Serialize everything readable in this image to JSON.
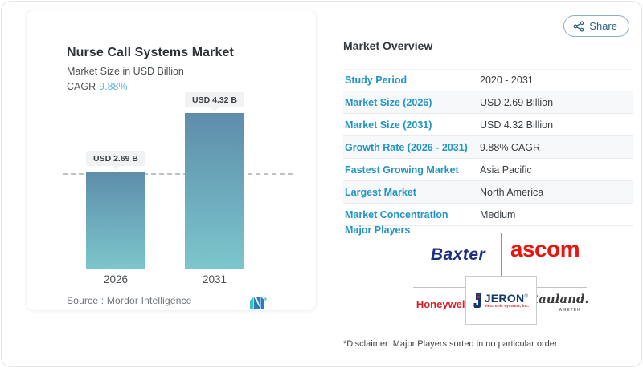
{
  "share": {
    "label": "Share"
  },
  "chart_card": {
    "title": "Nurse Call Systems Market",
    "subtitle": "Market Size in USD Billion",
    "cagr_label": "CAGR",
    "cagr_value": "9.88%",
    "source_label": "Source :  Mordor Intelligence"
  },
  "chart_data": {
    "type": "bar",
    "title": "Nurse Call Systems Market",
    "ylabel": "Market Size in USD Billion",
    "categories": [
      "2026",
      "2031"
    ],
    "values": [
      2.69,
      4.32
    ],
    "value_labels": [
      "USD 2.69 B",
      "USD 4.32 B"
    ],
    "ylim": [
      0,
      4.32
    ],
    "reference_line": 2.69,
    "bar_gradient_top": "#5e8dab",
    "bar_gradient_bottom": "#7cc6cc",
    "grid": false,
    "legend": false
  },
  "overview": {
    "heading": "Market Overview",
    "rows": [
      {
        "label": "Study Period",
        "value": "2020 - 2031"
      },
      {
        "label": "Market Size (2026)",
        "value": "USD 2.69 Billion"
      },
      {
        "label": "Market Size (2031)",
        "value": "USD 4.32 Billion"
      },
      {
        "label": "Growth Rate (2026 - 2031)",
        "value": "9.88% CAGR"
      },
      {
        "label": "Fastest Growing Market",
        "value": "Asia Pacific"
      },
      {
        "label": "Largest Market",
        "value": "North America"
      },
      {
        "label": "Market Concentration",
        "value": "Medium"
      }
    ],
    "major_players_label": "Major Players",
    "players": {
      "baxter": "Baxter",
      "ascom": "ascom",
      "honeywell": "Honeywell",
      "jeron": "JERON",
      "jeron_reg": "®",
      "jeron_sub": "electronic systems, inc.",
      "rauland": "Rauland.",
      "rauland_sub": "AMETEK"
    },
    "disclaimer": "*Disclaimer: Major Players sorted in no particular order"
  },
  "colors": {
    "accent_blue": "#2095c5",
    "cagr_blue": "#5fb0dd",
    "baxter_navy": "#1e2f7d",
    "ascom_red": "#e8150f",
    "honeywell_red": "#dc1e26",
    "jeron_navy": "#14386b",
    "share_teal": "#2f607e"
  }
}
